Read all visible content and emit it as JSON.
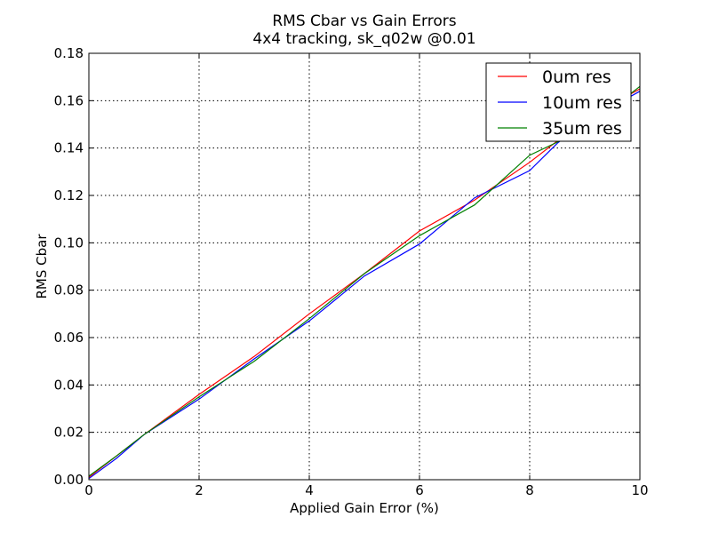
{
  "chart_data": {
    "type": "line",
    "title": "RMS Cbar vs Gain Errors",
    "subtitle": "4x4 tracking, sk_q02w @0.01",
    "xlabel": "Applied Gain Error (%)",
    "ylabel": "RMS Cbar",
    "xlim": [
      0,
      10
    ],
    "ylim": [
      0,
      0.18
    ],
    "xticks": [
      0,
      2,
      4,
      6,
      8,
      10
    ],
    "xtick_labels": [
      "0",
      "2",
      "4",
      "6",
      "8",
      "10"
    ],
    "yticks": [
      0.0,
      0.02,
      0.04,
      0.06,
      0.08,
      0.1,
      0.12,
      0.14,
      0.16,
      0.18
    ],
    "ytick_labels": [
      "0.00",
      "0.02",
      "0.04",
      "0.06",
      "0.08",
      "0.10",
      "0.12",
      "0.14",
      "0.16",
      "0.18"
    ],
    "grid": true,
    "legend_position": "top-right",
    "series": [
      {
        "name": "0um res",
        "color": "#ff0000",
        "x": [
          0,
          0.5,
          1,
          2,
          3,
          4,
          5,
          6,
          7,
          8,
          9,
          10
        ],
        "y": [
          0.001,
          0.01,
          0.019,
          0.036,
          0.052,
          0.07,
          0.087,
          0.105,
          0.118,
          0.134,
          0.152,
          0.165
        ]
      },
      {
        "name": "10um res",
        "color": "#0000ff",
        "x": [
          0,
          0.5,
          1,
          2,
          3,
          4,
          5,
          6,
          7,
          8,
          8.5,
          9,
          10
        ],
        "y": [
          0.0005,
          0.009,
          0.019,
          0.034,
          0.051,
          0.067,
          0.086,
          0.0995,
          0.119,
          0.1305,
          0.142,
          0.151,
          0.164
        ]
      },
      {
        "name": "35um res",
        "color": "#008000",
        "x": [
          0,
          0.5,
          1,
          2,
          3,
          4,
          5,
          6,
          7,
          8,
          9,
          10
        ],
        "y": [
          0.0015,
          0.01,
          0.019,
          0.035,
          0.05,
          0.068,
          0.087,
          0.103,
          0.116,
          0.137,
          0.148,
          0.166
        ]
      }
    ]
  }
}
